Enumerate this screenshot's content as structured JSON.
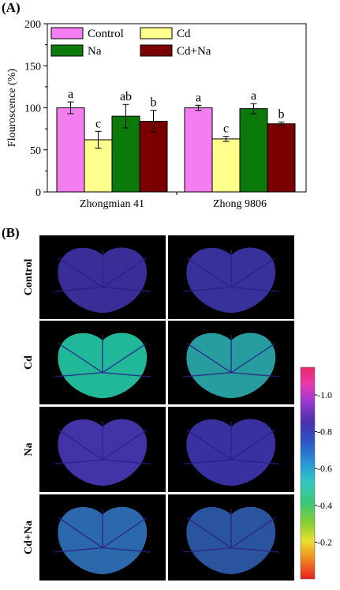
{
  "panel_a_label": "(A)",
  "panel_b_label": "(B)",
  "chart_data": {
    "type": "bar",
    "ylabel": "Flouroscence (%)",
    "ylim": [
      0,
      200
    ],
    "yticks": [
      0,
      50,
      100,
      150,
      200
    ],
    "categories": [
      "Zhongmian 41",
      "Zhong 9806"
    ],
    "legend_placement": "top, two columns",
    "series": [
      {
        "name": "Control",
        "color": "#f47ef0",
        "values": [
          100,
          100
        ],
        "errors": [
          7,
          3
        ],
        "letters": [
          "a",
          "a"
        ]
      },
      {
        "name": "Cd",
        "color": "#ffff8c",
        "values": [
          62,
          63
        ],
        "errors": [
          10,
          3
        ],
        "letters": [
          "c",
          "c"
        ]
      },
      {
        "name": "Na",
        "color": "#0b7a0b",
        "values": [
          90,
          99
        ],
        "errors": [
          14,
          6
        ],
        "letters": [
          "ab",
          "a"
        ]
      },
      {
        "name": "Cd+Na",
        "color": "#7a0000",
        "values": [
          84,
          81
        ],
        "errors": [
          13,
          2
        ],
        "letters": [
          "b",
          "b"
        ]
      }
    ]
  },
  "images": {
    "rows": [
      {
        "label": "Control",
        "tones": [
          "#3c2fa0",
          "#3b33a3"
        ]
      },
      {
        "label": "Cd",
        "tones": [
          "#22c2a0",
          "#2aa5a8"
        ]
      },
      {
        "label": "Na",
        "tones": [
          "#4636b0",
          "#3c34a8"
        ]
      },
      {
        "label": "Cd+Na",
        "tones": [
          "#2e6fb5",
          "#2c5aa6"
        ]
      }
    ],
    "colorbar": {
      "ticks": [
        "1.0",
        "0.8",
        "0.6",
        "0.4",
        "0.2"
      ],
      "tick_values": [
        1.0,
        0.8,
        0.6,
        0.4,
        0.2
      ],
      "range": [
        0,
        1.15
      ]
    }
  }
}
